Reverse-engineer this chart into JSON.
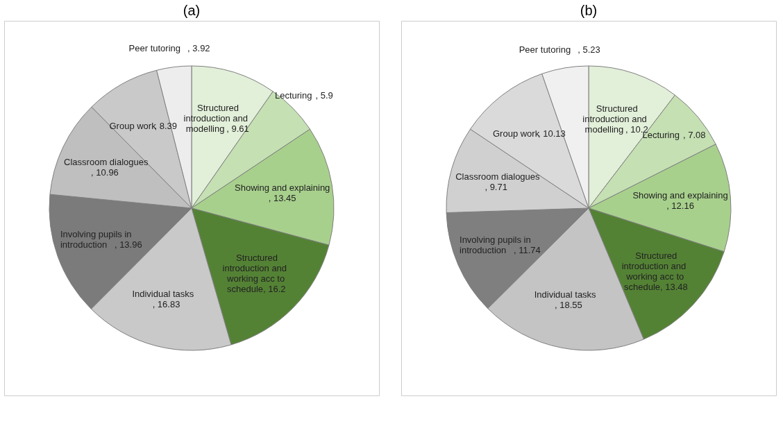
{
  "chart_data": [
    {
      "type": "pie",
      "title": "(a)",
      "categories": [
        "Structured introduction and modelling",
        "Lecturing",
        "Showing and explaining",
        "Structured introduction and working acc to schedule",
        "Individual tasks",
        "Involving pupils in introduction",
        "Classroom dialogues",
        "Group work",
        "Peer tutoring"
      ],
      "values": [
        9.61,
        5.9,
        13.45,
        16.2,
        16.83,
        13.96,
        10.96,
        8.39,
        3.92
      ],
      "value_labels": [
        ", 9.61",
        ", 5.9",
        ", 13.45",
        ", 16.2",
        ", 16.83",
        ", 13.96",
        ", 10.96",
        ", 8.39",
        ", 3.92"
      ],
      "colors": [
        "#e2efd9",
        "#c5e0b3",
        "#a8d08d",
        "#548235",
        "#c9c9c9",
        "#7b7b7b",
        "#bfbfbf",
        "#c9c9c9",
        "#ededed"
      ]
    },
    {
      "type": "pie",
      "title": "(b)",
      "categories": [
        "Structured introduction and modelling",
        "Lecturing",
        "Showing and explaining",
        "Structured introduction and working acc to schedule",
        "Individual tasks",
        "Involving pupils in introduction",
        "Classroom dialogues",
        "Group work",
        "Peer tutoring"
      ],
      "values": [
        10.2,
        7.08,
        12.16,
        13.48,
        18.55,
        11.74,
        9.71,
        10.13,
        5.23
      ],
      "value_labels": [
        ", 10.2",
        ", 7.08",
        ", 12.16",
        ", 13.48",
        ", 18.55",
        ", 11.74",
        ", 9.71",
        ", 10.13",
        ", 5.23"
      ],
      "colors": [
        "#e2efd9",
        "#c5e0b3",
        "#a8d08d",
        "#548235",
        "#c4c4c4",
        "#7f7f7f",
        "#d0d0d0",
        "#dadada",
        "#f0f0f0"
      ]
    }
  ]
}
